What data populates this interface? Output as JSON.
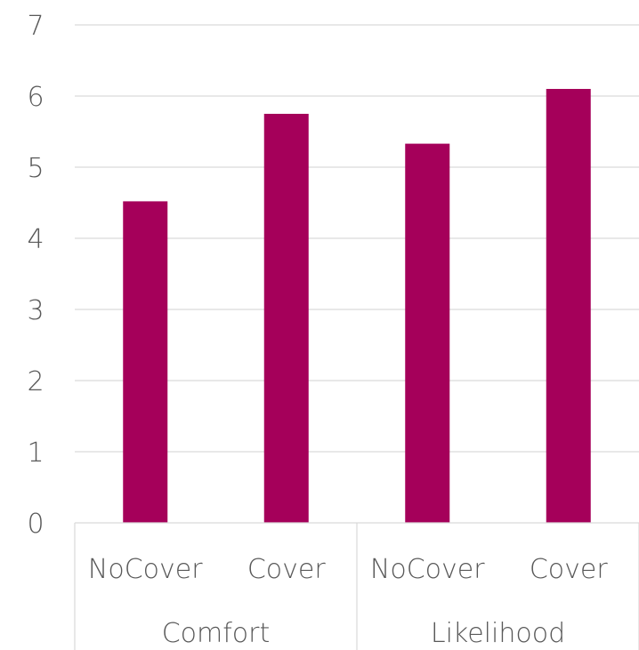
{
  "chart_data": {
    "type": "bar",
    "title": "",
    "xlabel": "",
    "ylabel": "",
    "ylim": [
      0,
      7
    ],
    "yticks": [
      0,
      1,
      2,
      3,
      4,
      5,
      6,
      7
    ],
    "grid": true,
    "legend": "none",
    "bar_color": "#A5005A",
    "grid_color": "#D9D9D9",
    "groups": [
      {
        "label": "Comfort",
        "categories": [
          "NoCover",
          "Cover"
        ]
      },
      {
        "label": "Likelihood",
        "categories": [
          "NoCover",
          "Cover"
        ]
      }
    ],
    "categories": [
      "NoCover",
      "Cover",
      "NoCover",
      "Cover"
    ],
    "values": [
      4.52,
      5.75,
      5.33,
      6.1
    ]
  }
}
